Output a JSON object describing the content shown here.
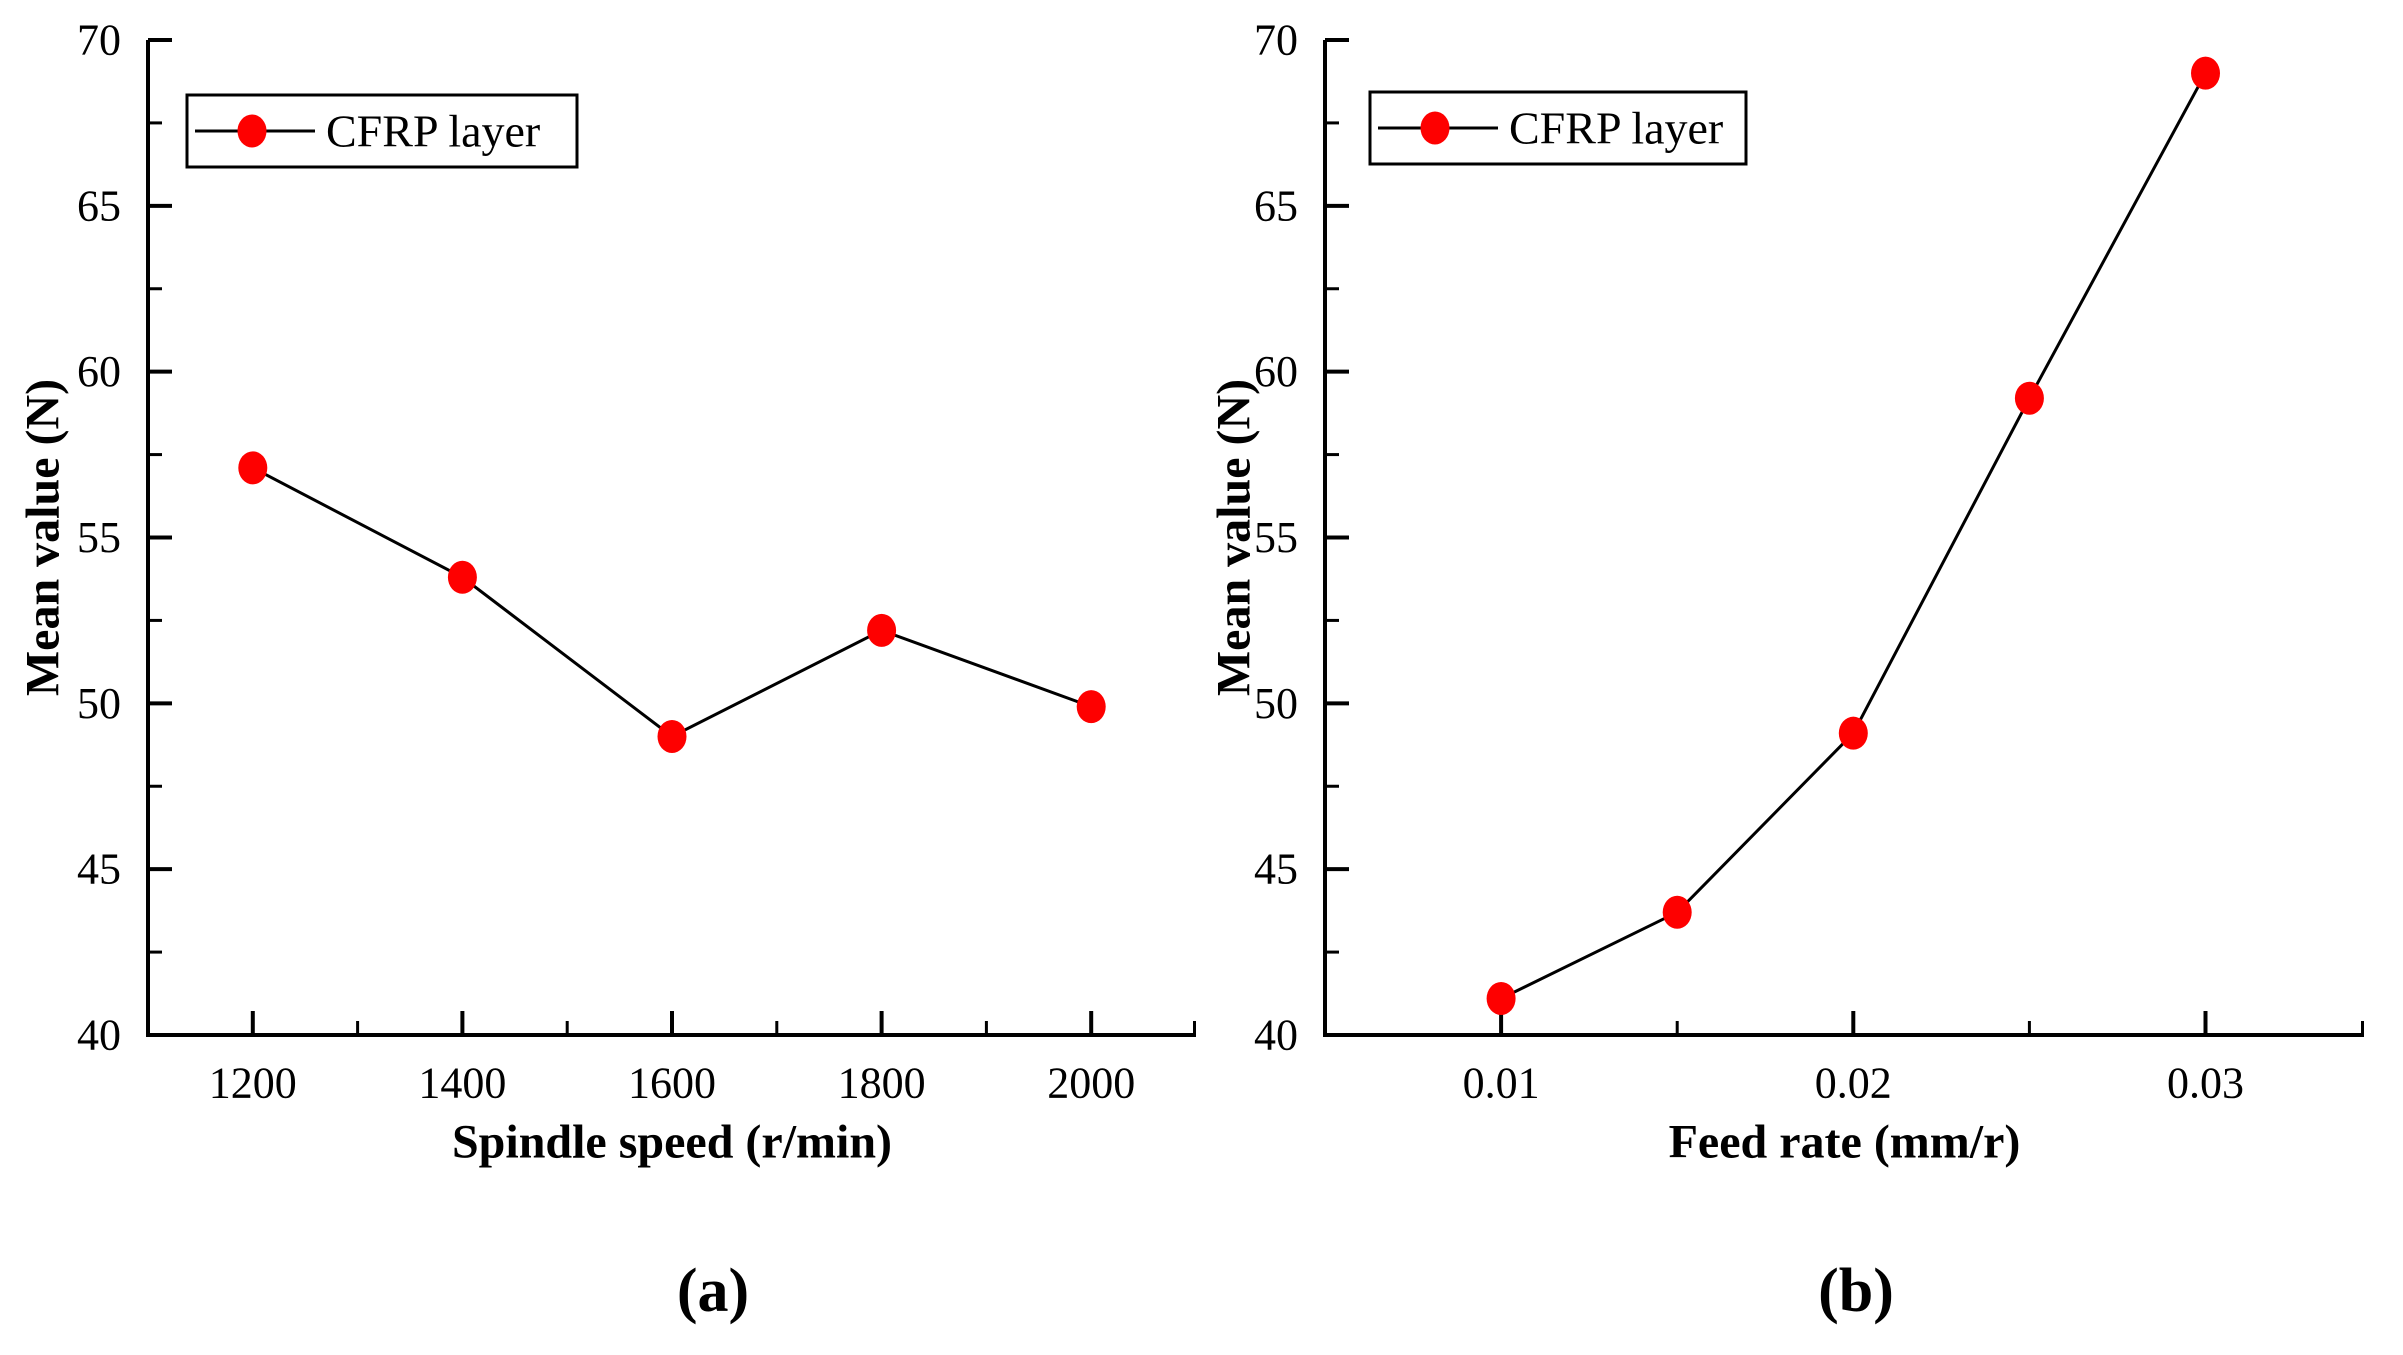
{
  "figure": {
    "background": "#ffffff",
    "text_color": "#000000",
    "captions": {
      "a": "(a)",
      "b": "(b)"
    }
  },
  "chart_data": [
    {
      "id": "a",
      "type": "line",
      "caption": "(a)",
      "title": "",
      "xlabel": "Spindle speed (r/min)",
      "ylabel": "Mean value (N)",
      "xlim": [
        1100,
        2100
      ],
      "ylim": [
        40,
        70
      ],
      "grid": false,
      "x": [
        1200,
        1400,
        1600,
        1800,
        2000
      ],
      "series": [
        {
          "name": "CFRP layer",
          "color": "#fe0000",
          "line_color": "#000000",
          "values": [
            57.1,
            53.8,
            49.0,
            52.2,
            49.9
          ]
        }
      ],
      "x_major_ticks": [
        1200,
        1400,
        1600,
        1800,
        2000
      ],
      "x_tick_labels": [
        "1200",
        "1400",
        "1600",
        "1800",
        "2000"
      ],
      "x_minor_ticks": [
        1300,
        1500,
        1700,
        1900,
        2100
      ],
      "y_major_ticks": [
        40,
        45,
        50,
        55,
        60,
        65,
        70
      ],
      "y_tick_labels": [
        "40",
        "45",
        "50",
        "55",
        "60",
        "65",
        "70"
      ],
      "y_minor_ticks": [
        42.5,
        47.5,
        52.5,
        57.5,
        62.5,
        67.5
      ],
      "legend": {
        "position": "top-left",
        "entries": [
          {
            "label": "CFRP layer",
            "marker": "filled-circle",
            "marker_color": "#fe0000",
            "line_color": "#000000"
          }
        ]
      }
    },
    {
      "id": "b",
      "type": "line",
      "caption": "(b)",
      "title": "",
      "xlabel": "Feed rate (mm/r)",
      "ylabel": "Mean value (N)",
      "xlim": [
        0.005,
        0.0345
      ],
      "ylim": [
        40,
        70
      ],
      "grid": false,
      "x": [
        0.01,
        0.015,
        0.02,
        0.025,
        0.03
      ],
      "series": [
        {
          "name": "CFRP layer",
          "color": "#fe0000",
          "line_color": "#000000",
          "values": [
            41.1,
            43.7,
            49.1,
            59.2,
            69.0
          ]
        }
      ],
      "x_major_ticks": [
        0.01,
        0.02,
        0.03
      ],
      "x_tick_labels": [
        "0.01",
        "0.02",
        "0.03"
      ],
      "x_minor_ticks": [
        0.015,
        0.025,
        0.0345
      ],
      "y_major_ticks": [
        40,
        45,
        50,
        55,
        60,
        65,
        70
      ],
      "y_tick_labels": [
        "40",
        "45",
        "50",
        "55",
        "60",
        "65",
        "70"
      ],
      "y_minor_ticks": [
        42.5,
        47.5,
        52.5,
        57.5,
        62.5,
        67.5
      ],
      "legend": {
        "position": "top-left",
        "entries": [
          {
            "label": "CFRP layer",
            "marker": "filled-circle",
            "marker_color": "#fe0000",
            "line_color": "#000000"
          }
        ]
      }
    }
  ]
}
